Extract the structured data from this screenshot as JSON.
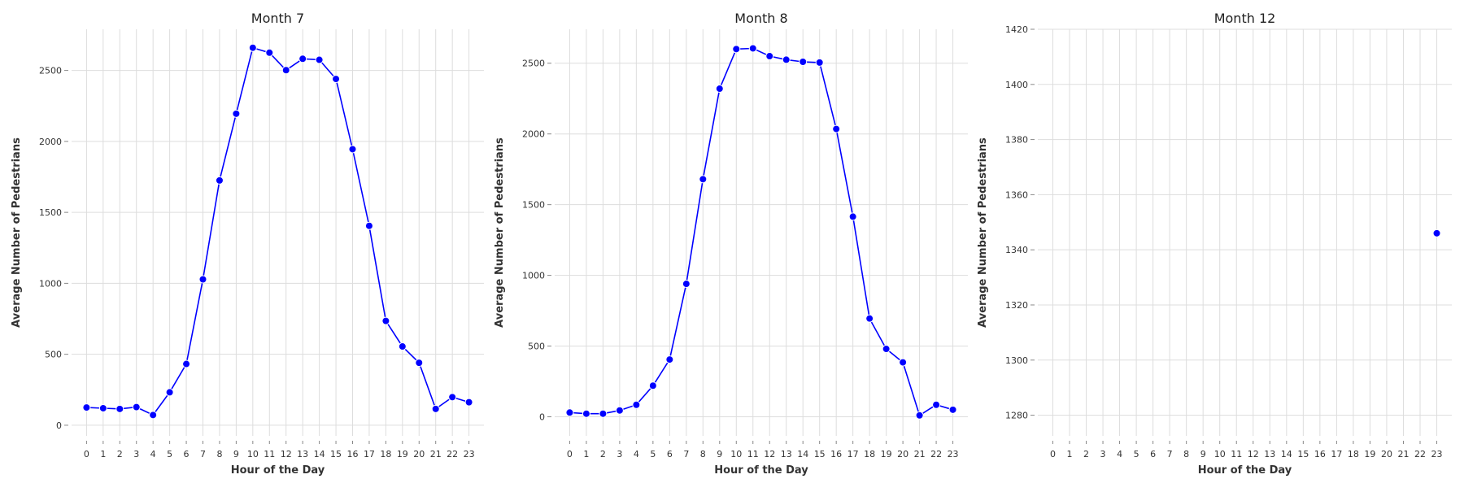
{
  "chart_data": [
    {
      "type": "line",
      "title": "Month 7",
      "xlabel": "Hour of the Day",
      "ylabel": "Average Number of Pedestrians",
      "x": [
        0,
        1,
        2,
        3,
        4,
        5,
        6,
        7,
        8,
        9,
        10,
        11,
        12,
        13,
        14,
        15,
        16,
        17,
        18,
        19,
        20,
        21,
        22,
        23
      ],
      "series": [
        {
          "values": [
            125,
            120,
            115,
            128,
            72,
            232,
            432,
            1028,
            1725,
            2195,
            2660,
            2625,
            2502,
            2582,
            2575,
            2440,
            1945,
            1405,
            735,
            555,
            440,
            115,
            198,
            162
          ]
        }
      ],
      "ylim": [
        -75,
        2790
      ],
      "yticks": [
        0,
        500,
        1000,
        1500,
        2000,
        2500
      ],
      "grid": true,
      "color": "#0000ff"
    },
    {
      "type": "line",
      "title": "Month 8",
      "xlabel": "Hour of the Day",
      "ylabel": "Average Number of Pedestrians",
      "x": [
        0,
        1,
        2,
        3,
        4,
        5,
        6,
        7,
        8,
        9,
        10,
        11,
        12,
        13,
        14,
        15,
        16,
        17,
        18,
        19,
        20,
        21,
        22,
        23
      ],
      "series": [
        {
          "values": [
            30,
            22,
            22,
            45,
            85,
            220,
            405,
            940,
            1680,
            2320,
            2600,
            2605,
            2550,
            2525,
            2510,
            2505,
            2035,
            1415,
            695,
            480,
            385,
            10,
            85,
            50
          ]
        }
      ],
      "ylim": [
        -135,
        2740
      ],
      "yticks": [
        0,
        500,
        1000,
        1500,
        2000,
        2500
      ],
      "grid": true,
      "color": "#0000ff"
    },
    {
      "type": "scatter",
      "title": "Month 12",
      "xlabel": "Hour of the Day",
      "ylabel": "Average Number of Pedestrians",
      "x": [
        0,
        1,
        2,
        3,
        4,
        5,
        6,
        7,
        8,
        9,
        10,
        11,
        12,
        13,
        14,
        15,
        16,
        17,
        18,
        19,
        20,
        21,
        22,
        23
      ],
      "series": [
        {
          "points": [
            [
              23,
              1346
            ]
          ]
        }
      ],
      "ylim": [
        1272.5,
        1420
      ],
      "yticks": [
        1280,
        1300,
        1320,
        1340,
        1360,
        1380,
        1400,
        1420
      ],
      "grid": true,
      "color": "#0000ff"
    }
  ]
}
